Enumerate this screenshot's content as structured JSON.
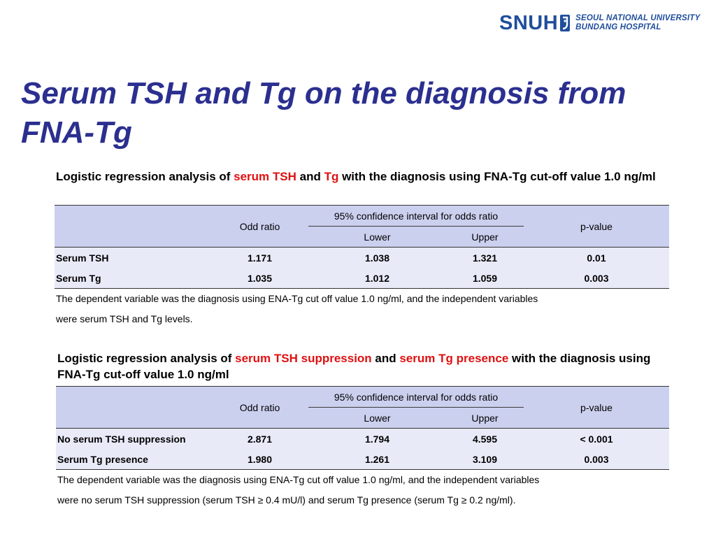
{
  "logo": {
    "mark": "SNUH",
    "line1": "SEOUL NATIONAL UNIVERSITY",
    "line2": "BUNDANG HOSPITAL",
    "color": "#1f4e9c"
  },
  "title": "Serum TSH and Tg on the diagnosis from FNA-Tg",
  "colors": {
    "title": "#2b2f8f",
    "highlight": "#e01010",
    "header_bg": "#ccd0ef",
    "row_bg": "#e8eaf8"
  },
  "table1": {
    "caption": {
      "part1": "Logistic regression analysis of ",
      "red1": "serum TSH",
      "part2": " and ",
      "red2": "Tg",
      "part3": " with the diagnosis using FNA-Tg cut-off value 1.0 ng/ml"
    },
    "headers": {
      "odd_ratio": "Odd ratio",
      "ci": "95% confidence interval for odds ratio",
      "lower": "Lower",
      "upper": "Upper",
      "p_value": "p-value"
    },
    "rows": [
      {
        "label": "Serum TSH",
        "odd_ratio": "1.171",
        "lower": "1.038",
        "upper": "1.321",
        "p_value": "0.01"
      },
      {
        "label": "Serum Tg",
        "odd_ratio": "1.035",
        "lower": "1.012",
        "upper": "1.059",
        "p_value": "0.003"
      }
    ],
    "footnote": [
      "The dependent variable was the diagnosis using ENA-Tg cut off value 1.0 ng/ml, and the independent variables",
      "were serum TSH and Tg levels."
    ]
  },
  "table2": {
    "caption": {
      "part1": "Logistic regression analysis of ",
      "red1": "serum TSH suppression",
      "part2": " and ",
      "red2": "serum Tg presence",
      "part3": " with the diagnosis using FNA-Tg cut-off value 1.0 ng/ml"
    },
    "headers": {
      "odd_ratio": "Odd ratio",
      "ci": "95% confidence interval for odds ratio",
      "lower": "Lower",
      "upper": "Upper",
      "p_value": "p-value"
    },
    "rows": [
      {
        "label": "No serum TSH suppression",
        "odd_ratio": "2.871",
        "lower": "1.794",
        "upper": "4.595",
        "p_value": "< 0.001"
      },
      {
        "label": "Serum Tg presence",
        "odd_ratio": "1.980",
        "lower": "1.261",
        "upper": "3.109",
        "p_value": "0.003"
      }
    ],
    "footnote": [
      "The dependent variable was the diagnosis using ENA-Tg cut off value 1.0 ng/ml, and the independent variables",
      "were no serum TSH suppression (serum TSH ≥ 0.4 mU/l) and serum Tg presence (serum Tg ≥ 0.2 ng/ml)."
    ]
  }
}
